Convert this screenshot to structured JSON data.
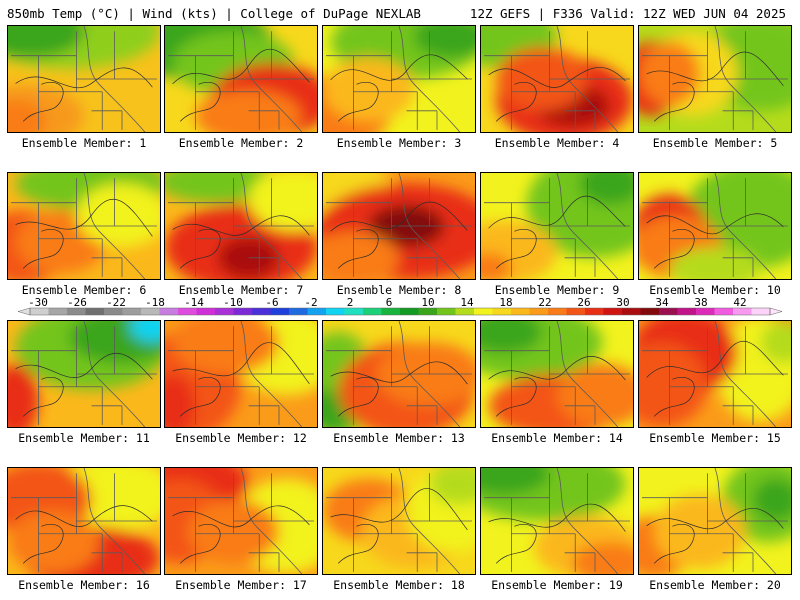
{
  "header": {
    "left": "850mb Temp (°C) | Wind (kts) | College of DuPage NEXLAB",
    "right": "12Z GEFS | F336 Valid: 12Z WED JUN 04 2025"
  },
  "colorbar": {
    "tick_labels": [
      "-30",
      "-26",
      "-22",
      "-18",
      "-14",
      "-10",
      "-6",
      "-2",
      "2",
      "6",
      "10",
      "14",
      "18",
      "22",
      "26",
      "30",
      "34",
      "38",
      "42"
    ],
    "colors": [
      "#cfcfcf",
      "#a6a6a6",
      "#8c8c8c",
      "#707070",
      "#8a8a8a",
      "#9d9d9d",
      "#b8b8b8",
      "#c77ddf",
      "#de4bdf",
      "#cf2fd6",
      "#a92fd6",
      "#7b2ad6",
      "#4b2fd8",
      "#1f3fdc",
      "#1e6be0",
      "#13a2f0",
      "#11d3f2",
      "#20e0c0",
      "#1dd07a",
      "#19b43e",
      "#129a22",
      "#3aa51a",
      "#73c51b",
      "#b5dc1c",
      "#f2f21e",
      "#f7d81c",
      "#fbb81b",
      "#fb9b1a",
      "#f97c18",
      "#f35516",
      "#e82e14",
      "#d01412",
      "#aa0d10",
      "#830a0c",
      "#9c0f4f",
      "#c11488",
      "#de2ab8",
      "#f05be0",
      "#f79aef",
      "#fcd2f8"
    ]
  },
  "members": [
    {
      "label": "Ensemble Member: 1"
    },
    {
      "label": "Ensemble Member: 2"
    },
    {
      "label": "Ensemble Member: 3"
    },
    {
      "label": "Ensemble Member: 4"
    },
    {
      "label": "Ensemble Member: 5"
    },
    {
      "label": "Ensemble Member: 6"
    },
    {
      "label": "Ensemble Member: 7"
    },
    {
      "label": "Ensemble Member: 8"
    },
    {
      "label": "Ensemble Member: 9"
    },
    {
      "label": "Ensemble Member: 10"
    },
    {
      "label": "Ensemble Member: 11"
    },
    {
      "label": "Ensemble Member: 12"
    },
    {
      "label": "Ensemble Member: 13"
    },
    {
      "label": "Ensemble Member: 14"
    },
    {
      "label": "Ensemble Member: 15"
    },
    {
      "label": "Ensemble Member: 16"
    },
    {
      "label": "Ensemble Member: 17"
    },
    {
      "label": "Ensemble Member: 18"
    },
    {
      "label": "Ensemble Member: 19"
    },
    {
      "label": "Ensemble Member: 20"
    }
  ]
}
